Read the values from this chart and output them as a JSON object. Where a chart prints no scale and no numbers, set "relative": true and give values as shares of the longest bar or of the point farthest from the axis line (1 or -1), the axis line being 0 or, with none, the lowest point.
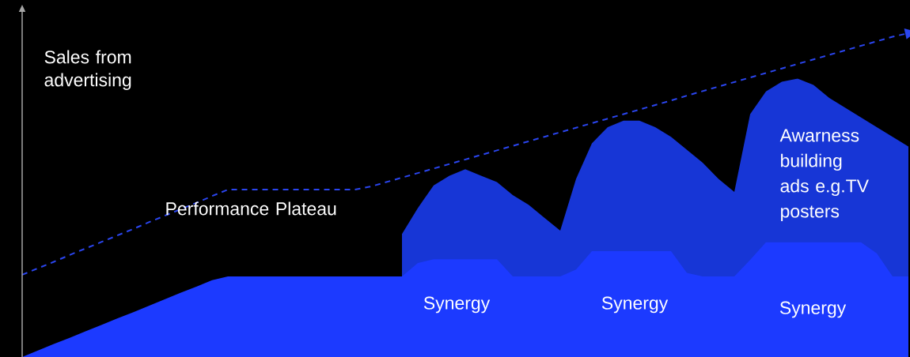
{
  "chart_data": {
    "type": "area",
    "relative": true,
    "ylabel": "Sales from advertising",
    "categories": [
      null,
      null,
      null,
      null,
      null,
      null,
      null,
      null,
      null,
      null,
      null,
      null,
      null,
      null,
      null,
      null,
      null,
      null,
      null,
      null,
      null,
      null,
      null,
      null,
      null,
      null,
      null,
      null,
      null,
      null,
      null,
      null,
      null,
      null,
      null,
      null,
      null,
      null,
      null,
      null,
      null,
      null,
      null,
      null,
      null,
      null,
      null,
      null,
      null,
      null,
      null,
      null,
      null,
      null,
      null,
      null,
      null
    ],
    "series": [
      {
        "color": "#1736d6",
        "values": [
          null,
          null,
          null,
          null,
          null,
          null,
          null,
          null,
          null,
          null,
          null,
          null,
          null,
          null,
          null,
          null,
          null,
          null,
          null,
          null,
          null,
          null,
          null,
          null,
          0.38,
          0.46,
          0.53,
          0.56,
          0.58,
          0.56,
          0.54,
          0.5,
          0.47,
          0.43,
          0.39,
          0.55,
          0.66,
          0.71,
          0.73,
          0.73,
          0.71,
          0.68,
          0.64,
          0.6,
          0.55,
          0.51,
          0.75,
          0.82,
          0.85,
          0.86,
          0.84,
          0.8,
          0.77,
          0.74,
          0.71,
          0.68,
          0.65
        ]
      },
      {
        "color": "#1c3aff",
        "values": [
          0,
          0.02,
          0.04,
          0.059,
          0.079,
          0.099,
          0.119,
          0.138,
          0.158,
          0.178,
          0.198,
          0.217,
          0.237,
          0.249,
          0.249,
          0.249,
          0.249,
          0.249,
          0.249,
          0.249,
          0.249,
          0.249,
          0.249,
          0.249,
          0.249,
          0.29,
          0.302,
          0.302,
          0.302,
          0.302,
          0.302,
          0.249,
          0.249,
          0.249,
          0.249,
          0.27,
          0.327,
          0.327,
          0.327,
          0.327,
          0.327,
          0.327,
          0.26,
          0.249,
          0.249,
          0.249,
          0.3,
          0.354,
          0.354,
          0.354,
          0.354,
          0.354,
          0.354,
          0.354,
          0.32,
          0.249,
          0.249
        ]
      },
      {
        "type": "line",
        "line_style": "dashed",
        "color": "#2a45ee",
        "values": [
          0.254,
          0.274,
          0.294,
          0.315,
          0.335,
          0.355,
          0.375,
          0.395,
          0.416,
          0.436,
          0.456,
          0.476,
          0.497,
          0.517,
          0.517,
          0.517,
          0.517,
          0.517,
          0.517,
          0.517,
          0.517,
          0.517,
          0.526,
          0.54,
          0.554,
          0.568,
          0.582,
          0.596,
          0.61,
          0.624,
          0.638,
          0.652,
          0.666,
          0.68,
          0.694,
          0.708,
          0.722,
          0.736,
          0.75,
          0.764,
          0.778,
          0.792,
          0.807,
          0.821,
          0.835,
          0.849,
          0.863,
          0.877,
          0.891,
          0.905,
          0.919,
          0.933,
          0.947,
          0.961,
          0.975,
          0.989,
          1.0
        ]
      }
    ],
    "annotations": [
      "Performance Plateau",
      "Awarness building ads e.g.TV posters",
      "Synergy",
      "Synergy",
      "Synergy"
    ]
  }
}
